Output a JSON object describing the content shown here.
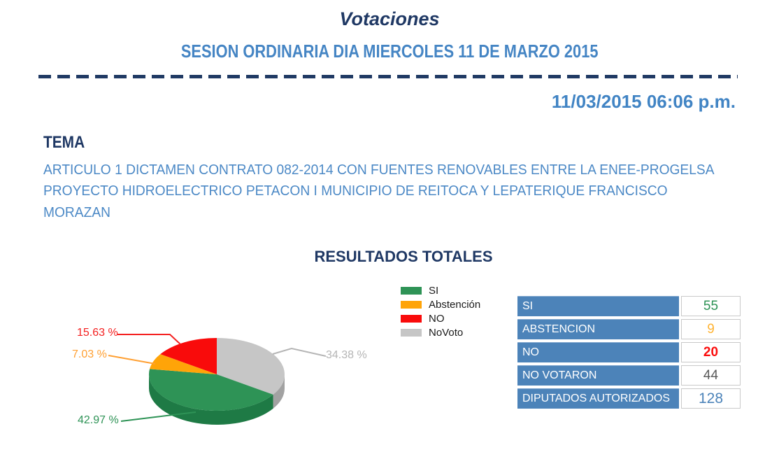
{
  "page": {
    "title": "Votaciones",
    "subtitle": "SESION ORDINARIA DIA MIERCOLES 11 DE MARZO 2015",
    "timestamp": "11/03/2015 06:06 p.m."
  },
  "colors": {
    "navy": "#1F3864",
    "heading_blue": "#4585C4",
    "timestamp_blue": "#4184C4",
    "topic_blue": "#4C89C6",
    "table_label_bg": "#4C83B9"
  },
  "tema": {
    "heading": "TEMA",
    "lines": [
      "ARTICULO 1 DICTAMEN CONTRATO 082-2014 CON FUENTES RENOVABLES ENTRE LA ENEE-PROGELSA",
      "PROYECTO HIDROELECTRICO PETACON I MUNICIPIO DE REITOCA Y LEPATERIQUE FRANCISCO",
      "MORAZAN"
    ]
  },
  "chart_data": {
    "type": "pie",
    "title": "RESULTADOS TOTALES",
    "style": "3d-pie",
    "start_angle_deg": -90,
    "direction": "clockwise",
    "slices": [
      {
        "label": "NoVoto",
        "value_pct": 34.38,
        "display": "34.38 %",
        "color": "#C6C6C6",
        "side_color": "#A2A2A2",
        "label_color": "#B5B5B5"
      },
      {
        "label": "SI",
        "value_pct": 42.97,
        "display": "42.97 %",
        "color": "#2E9356",
        "side_color": "#1E7A45",
        "label_color": "#2E9356"
      },
      {
        "label": "Abstención",
        "value_pct": 7.03,
        "display": "7.03 %",
        "color": "#FFA408",
        "side_color": "#C87F00",
        "label_color": "#FFA033"
      },
      {
        "label": "NO",
        "value_pct": 15.63,
        "display": "15.63 %",
        "color": "#F90B0B",
        "side_color": "#C00000",
        "label_color": "#F42121"
      }
    ],
    "legend": [
      {
        "label": "SI",
        "color": "#2E9356"
      },
      {
        "label": "Abstención",
        "color": "#FFA408"
      },
      {
        "label": "NO",
        "color": "#F90B0B"
      },
      {
        "label": "NoVoto",
        "color": "#C6C6C6"
      }
    ],
    "legend_position": "right-of-pie"
  },
  "table": {
    "rows": [
      {
        "label": "SI",
        "value": "55",
        "value_color": "#2E9356"
      },
      {
        "label": "ABSTENCION",
        "value": "9",
        "value_color": "#FFB332"
      },
      {
        "label": "NO",
        "value": "20",
        "value_color": "#FB0F0F"
      },
      {
        "label": "NO VOTARON",
        "value": "44",
        "value_color": "#5A5A5A"
      },
      {
        "label": "DIPUTADOS AUTORIZADOS",
        "value": "128",
        "value_color": "#4C83B9"
      }
    ]
  }
}
